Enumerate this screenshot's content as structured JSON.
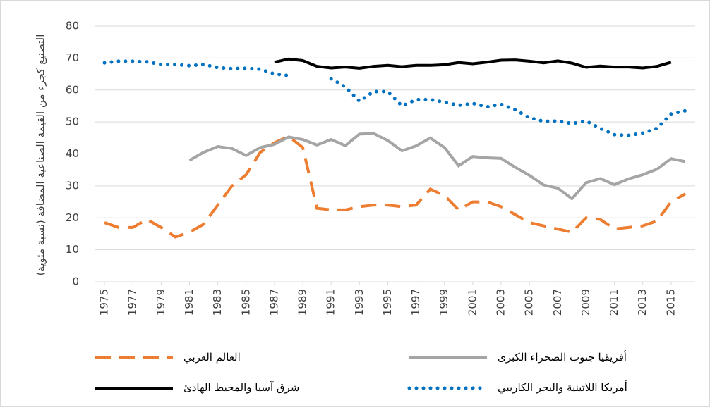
{
  "chart_data": {
    "type": "line",
    "y_label": "التصنيع كجزء من القيمة الصناعية المضافة (نسبة مئوية)",
    "x": [
      1975,
      1976,
      1977,
      1978,
      1979,
      1980,
      1981,
      1982,
      1983,
      1984,
      1985,
      1986,
      1987,
      1988,
      1989,
      1990,
      1991,
      1992,
      1993,
      1994,
      1995,
      1996,
      1997,
      1998,
      1999,
      2000,
      2001,
      2002,
      2003,
      2004,
      2005,
      2006,
      2007,
      2008,
      2009,
      2010,
      2011,
      2012,
      2013,
      2014,
      2015,
      2016
    ],
    "xlim": [
      1974.3,
      2016.7
    ],
    "xticks": [
      1975,
      1977,
      1979,
      1981,
      1983,
      1985,
      1987,
      1989,
      1991,
      1993,
      1995,
      1997,
      1999,
      2001,
      2003,
      2005,
      2007,
      2009,
      2011,
      2013,
      2015
    ],
    "ylim": [
      0,
      80
    ],
    "yticks": [
      0,
      10,
      20,
      30,
      40,
      50,
      60,
      70,
      80
    ],
    "grid": true,
    "series": [
      {
        "name": "العالم العربي",
        "color": "#ed7d31",
        "style": "dashed",
        "values": [
          18.5,
          17,
          17,
          19.5,
          17,
          14,
          15.5,
          18,
          24,
          30,
          33.5,
          40.5,
          43.5,
          45.5,
          42,
          23,
          22.5,
          22.5,
          23.5,
          24,
          24,
          23.5,
          24,
          29,
          27,
          22.5,
          25,
          25,
          23.5,
          21,
          18.5,
          17.5,
          16.5,
          15.5,
          20,
          19.5,
          16.5,
          17,
          17.5,
          19,
          25,
          27.5
        ]
      },
      {
        "name": "أفريقيا جنوب الصحراء الكبرى",
        "color": "#a5a5a5",
        "style": "solid",
        "values": [
          null,
          null,
          null,
          null,
          null,
          null,
          38,
          40.5,
          42.3,
          41.7,
          39.5,
          42,
          43,
          45.3,
          44.5,
          42.8,
          44.5,
          42.6,
          46.2,
          46.4,
          44.2,
          41,
          42.5,
          45,
          42,
          36.3,
          39.2,
          38.8,
          38.6,
          35.8,
          33.3,
          30.3,
          29.3,
          26,
          31,
          32.3,
          30.4,
          32.2,
          33.5,
          35.2,
          38.5,
          37.6
        ]
      },
      {
        "name": "شرق آسيا والمحيط الهادئ",
        "color": "#000000",
        "style": "solid",
        "values": [
          null,
          null,
          null,
          null,
          null,
          null,
          null,
          null,
          null,
          null,
          null,
          null,
          68.7,
          69.7,
          69.2,
          67.4,
          66.9,
          67.2,
          66.8,
          67.4,
          67.7,
          67.3,
          67.7,
          67.7,
          67.9,
          68.6,
          68.2,
          68.7,
          69.3,
          69.4,
          69,
          68.5,
          69.1,
          68.4,
          67.1,
          67.5,
          67.2,
          67.2,
          66.9,
          67.4,
          68.7,
          null
        ]
      },
      {
        "name": "أمريكا اللاتينية والبحر الكاريبي",
        "color": "#0070c0",
        "style": "dotted",
        "values": [
          68.5,
          69,
          69,
          68.8,
          68,
          68,
          67.6,
          68,
          67,
          66.7,
          66.8,
          66.5,
          65,
          64.5,
          null,
          null,
          63.5,
          61,
          56.5,
          59.5,
          59.5,
          55,
          57,
          57,
          56.2,
          55.2,
          55.8,
          54.7,
          55.5,
          53.8,
          51.3,
          50.2,
          50.3,
          49.5,
          50.3,
          48,
          46,
          45.8,
          46.5,
          48,
          52.5,
          53.5
        ]
      }
    ]
  }
}
